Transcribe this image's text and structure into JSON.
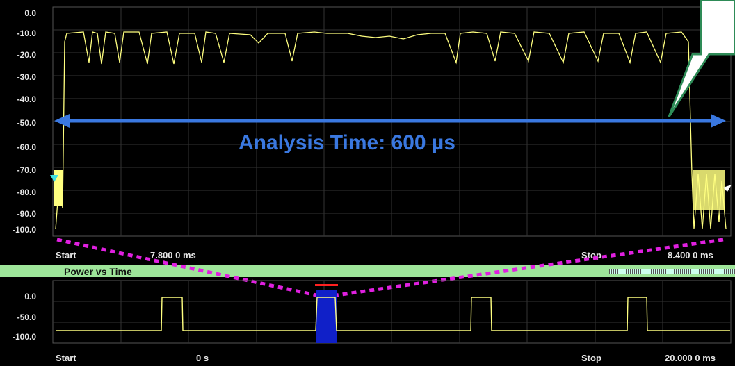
{
  "upper_trace": {
    "y_labels": [
      "0.0",
      "-10.0",
      "-20.0",
      "-30.0",
      "-40.0",
      "-50.0",
      "-60.0",
      "-70.0",
      "-80.0",
      "-90.0",
      "-100.0"
    ],
    "start_label": "Start",
    "start_value": "7.800 0 ms",
    "stop_label": "Stop",
    "stop_value": "8.400 0 ms",
    "trace_color": "#ffff80"
  },
  "annotation": {
    "text": "Analysis Time: 600 µs",
    "color": "#3a78e0"
  },
  "panel_title": "Power vs Time",
  "lower_trace": {
    "y_labels": [
      "0.0",
      "-50.0",
      "-100.0"
    ],
    "start_label": "Start",
    "start_value": "0 s",
    "stop_label": "Stop",
    "stop_value": "20.000 0 ms",
    "selection_color": "#1020c8",
    "marker_color": "#ff2020"
  },
  "colors": {
    "grid": "#3a3a3a",
    "zoom_lines": "#e020e0",
    "callout": "#2e8b57"
  }
}
